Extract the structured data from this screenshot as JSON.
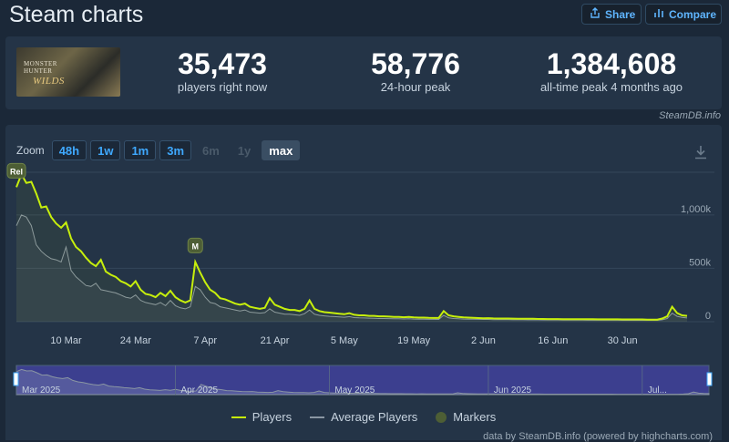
{
  "header": {
    "title": "Steam charts",
    "share_label": "Share",
    "compare_label": "Compare"
  },
  "game": {
    "cover_line1": "MONSTER HUNTER",
    "cover_line2": "WILDS"
  },
  "stats": [
    {
      "value": "35,473",
      "label": "players right now"
    },
    {
      "value": "58,776",
      "label": "24-hour peak"
    },
    {
      "value": "1,384,608",
      "label": "all-time peak 4 months ago"
    }
  ],
  "credit_top": "SteamDB.info",
  "zoom": {
    "label": "Zoom",
    "buttons": [
      {
        "label": "48h",
        "state": "enabled"
      },
      {
        "label": "1w",
        "state": "enabled"
      },
      {
        "label": "1m",
        "state": "enabled"
      },
      {
        "label": "3m",
        "state": "enabled"
      },
      {
        "label": "6m",
        "state": "disabled"
      },
      {
        "label": "1y",
        "state": "disabled"
      },
      {
        "label": "max",
        "state": "active"
      }
    ]
  },
  "chart_data": {
    "type": "line",
    "x_unit": "day",
    "start_date": "2025-02-28",
    "x_tick_labels": [
      "10 Mar",
      "24 Mar",
      "7 Apr",
      "21 Apr",
      "5 May",
      "19 May",
      "2 Jun",
      "16 Jun",
      "30 Jun"
    ],
    "y_tick_labels": [
      "0",
      "500k",
      "1,000k"
    ],
    "ylim": [
      0,
      1400000
    ],
    "grid": true,
    "legend_position": "bottom",
    "markers": [
      {
        "label": "Rel",
        "x": 0
      },
      {
        "label": "M",
        "x": 36
      }
    ],
    "series": [
      {
        "name": "Players",
        "color": "#c7ef0c",
        "values": [
          1260000,
          1380000,
          1300000,
          1310000,
          1200000,
          1070000,
          1080000,
          980000,
          920000,
          880000,
          930000,
          780000,
          700000,
          660000,
          600000,
          550000,
          520000,
          580000,
          470000,
          440000,
          420000,
          380000,
          360000,
          330000,
          380000,
          300000,
          260000,
          250000,
          230000,
          270000,
          240000,
          290000,
          230000,
          200000,
          180000,
          200000,
          560000,
          460000,
          370000,
          300000,
          270000,
          220000,
          210000,
          190000,
          170000,
          160000,
          170000,
          140000,
          130000,
          120000,
          130000,
          220000,
          160000,
          140000,
          120000,
          110000,
          110000,
          100000,
          120000,
          200000,
          120000,
          100000,
          90000,
          85000,
          80000,
          75000,
          70000,
          80000,
          65000,
          60000,
          60000,
          55000,
          55000,
          50000,
          50000,
          48000,
          45000,
          45000,
          42000,
          45000,
          40000,
          38000,
          38000,
          36000,
          35000,
          35000,
          100000,
          60000,
          50000,
          45000,
          40000,
          38000,
          36000,
          34000,
          32000,
          33000,
          31000,
          30000,
          30000,
          30000,
          29000,
          28000,
          28000,
          27000,
          27000,
          26000,
          26000,
          25000,
          25000,
          25000,
          24000,
          24000,
          24000,
          23000,
          23000,
          23000,
          23000,
          22000,
          22000,
          22000,
          22000,
          22000,
          21000,
          21000,
          21000,
          21000,
          21000,
          20000,
          20000,
          20000,
          30000,
          50000,
          140000,
          80000,
          60000,
          55000
        ]
      },
      {
        "name": "Average Players",
        "color": "#8a96a3",
        "values": [
          900000,
          1000000,
          980000,
          900000,
          720000,
          660000,
          620000,
          590000,
          580000,
          560000,
          700000,
          480000,
          420000,
          380000,
          340000,
          330000,
          360000,
          300000,
          290000,
          280000,
          270000,
          250000,
          230000,
          220000,
          250000,
          200000,
          180000,
          170000,
          160000,
          180000,
          150000,
          200000,
          150000,
          130000,
          120000,
          140000,
          330000,
          300000,
          230000,
          180000,
          170000,
          140000,
          130000,
          120000,
          110000,
          100000,
          110000,
          90000,
          85000,
          80000,
          85000,
          120000,
          90000,
          80000,
          70000,
          70000,
          65000,
          60000,
          75000,
          110000,
          70000,
          60000,
          55000,
          50000,
          48000,
          45000,
          42000,
          48000,
          38000,
          36000,
          35000,
          33000,
          32000,
          30000,
          30000,
          29000,
          28000,
          27000,
          26000,
          28000,
          25000,
          24000,
          23000,
          22000,
          22000,
          21000,
          60000,
          36000,
          30000,
          28000,
          25000,
          24000,
          23000,
          22000,
          21000,
          21000,
          20000,
          20000,
          19000,
          19000,
          18000,
          18000,
          18000,
          17000,
          17000,
          17000,
          16000,
          16000,
          16000,
          16000,
          15000,
          15000,
          15000,
          15000,
          15000,
          14000,
          14000,
          14000,
          14000,
          14000,
          14000,
          14000,
          13000,
          13000,
          13000,
          13000,
          13000,
          13000,
          13000,
          13000,
          18000,
          30000,
          80000,
          50000,
          40000,
          35000
        ]
      }
    ]
  },
  "navigator": {
    "labels": [
      "Mar 2025",
      "Apr 2025",
      "May 2025",
      "Jun 2025",
      "Jul..."
    ]
  },
  "legend": {
    "players": "Players",
    "average": "Average Players",
    "markers": "Markers",
    "players_color": "#c7ef0c",
    "average_color": "#8a96a3",
    "markers_color": "#4d5e35"
  },
  "credit_bottom": "data by SteamDB.info (powered by highcharts.com)",
  "colors": {
    "background": "#1b2838",
    "panel": "#243447",
    "accent": "#3fa9ff",
    "navigator_fill": "#3c3f8f"
  }
}
